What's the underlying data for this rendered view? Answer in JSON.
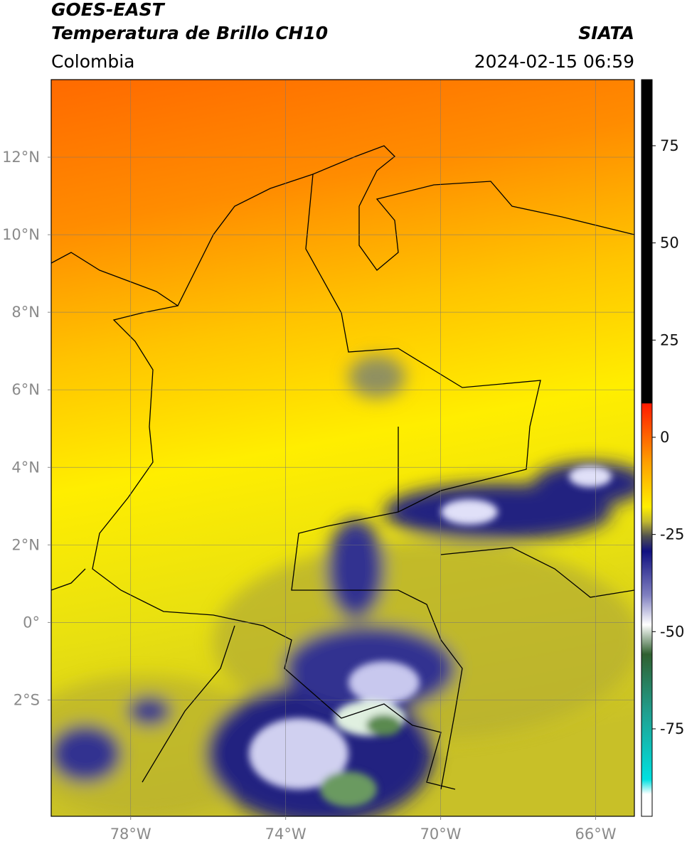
{
  "header": {
    "title_line1": "GOES-EAST",
    "title_line2": "Temperatura de Brillo CH10",
    "region": "Colombia",
    "source": "SIATA",
    "timestamp": "2024-02-15 06:59"
  },
  "map": {
    "xlim": [
      -80.05,
      -65
    ],
    "ylim": [
      -5,
      14
    ],
    "xticks": [
      {
        "value": -78,
        "label": "78°W"
      },
      {
        "value": -74,
        "label": "74°W"
      },
      {
        "value": -70,
        "label": "70°W"
      },
      {
        "value": -66,
        "label": "66°W"
      }
    ],
    "yticks": [
      {
        "value": 12,
        "label": "12°N"
      },
      {
        "value": 10,
        "label": "10°N"
      },
      {
        "value": 8,
        "label": "8°N"
      },
      {
        "value": 6,
        "label": "6°N"
      },
      {
        "value": 4,
        "label": "4°N"
      },
      {
        "value": 2,
        "label": "2°N"
      },
      {
        "value": 0,
        "label": "0°"
      },
      {
        "value": -2,
        "label": "2°S"
      }
    ]
  },
  "colorbar": {
    "lim": [
      -97.5,
      92
    ],
    "ticks": [
      75,
      50,
      25,
      0,
      -25,
      -50,
      -75
    ]
  }
}
